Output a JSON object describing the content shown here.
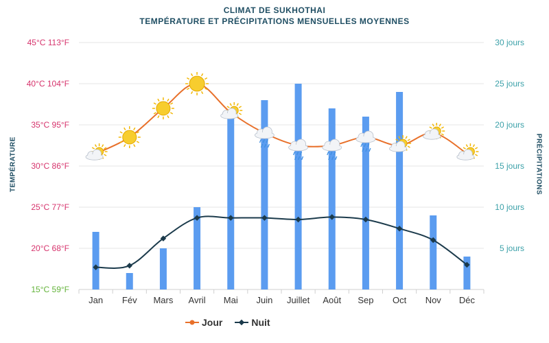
{
  "chart_data": {
    "type": "bar-line",
    "title": "CLIMAT DE SUKHOTHAI",
    "subtitle": "TEMPÉRATURE ET PRÉCIPITATIONS MENSUELLES MOYENNES",
    "ylabel_left": "TEMPÉRATURE",
    "ylabel_right": "PRÉCIPITATIONS",
    "categories": [
      "Jan",
      "Fév",
      "Mars",
      "Avril",
      "Mai",
      "Juin",
      "Juillet",
      "Août",
      "Sep",
      "Oct",
      "Nov",
      "Déc"
    ],
    "left_axis": {
      "ylim": [
        15,
        45
      ],
      "ticks": [
        {
          "value": 45,
          "label": "45°C 113°F",
          "color": "#d6336c"
        },
        {
          "value": 40,
          "label": "40°C 104°F",
          "color": "#d6336c"
        },
        {
          "value": 35,
          "label": "35°C 95°F",
          "color": "#d6336c"
        },
        {
          "value": 30,
          "label": "30°C 86°F",
          "color": "#d6336c"
        },
        {
          "value": 25,
          "label": "25°C 77°F",
          "color": "#d6336c"
        },
        {
          "value": 20,
          "label": "20°C 68°F",
          "color": "#d6336c"
        },
        {
          "value": 15,
          "label": "15°C 59°F",
          "color": "#63b33a"
        }
      ]
    },
    "right_axis": {
      "ylim": [
        0,
        30
      ],
      "ticks": [
        {
          "value": 30,
          "label": "30 jours"
        },
        {
          "value": 25,
          "label": "25 jours"
        },
        {
          "value": 20,
          "label": "20 jours"
        },
        {
          "value": 15,
          "label": "15 jours"
        },
        {
          "value": 10,
          "label": "10 jours"
        },
        {
          "value": 5,
          "label": "5 jours"
        }
      ]
    },
    "series": [
      {
        "name": "Jour",
        "type": "line",
        "axis": "left",
        "color": "#e8702a",
        "values": [
          31.5,
          33.5,
          37,
          40,
          36.5,
          34,
          32.5,
          32.5,
          33.5,
          32.5,
          34,
          31.5
        ]
      },
      {
        "name": "Nuit",
        "type": "line",
        "axis": "left",
        "color": "#1b3a4b",
        "values": [
          17.7,
          17.9,
          21.2,
          23.7,
          23.7,
          23.7,
          23.5,
          23.8,
          23.5,
          22.4,
          21,
          18
        ]
      },
      {
        "name": "Précipitations",
        "type": "bar",
        "axis": "right",
        "color": "#5b9cf0",
        "values": [
          7,
          2,
          5,
          10,
          21,
          23,
          25,
          22,
          21,
          24,
          9,
          4
        ]
      }
    ],
    "weather_icons": [
      "sun-cloud",
      "sun",
      "sun",
      "sun",
      "sun-cloud",
      "rain-cloud",
      "rain-cloud",
      "rain-cloud",
      "rain-cloud",
      "sun-cloud",
      "sun-cloud",
      "sun-cloud"
    ],
    "legend": [
      "Jour",
      "Nuit"
    ]
  }
}
